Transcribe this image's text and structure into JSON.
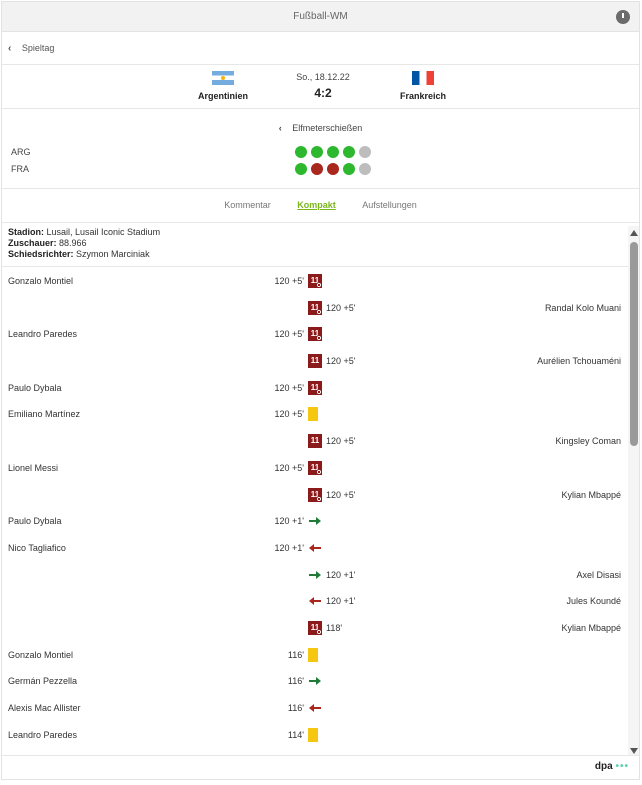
{
  "app_title": "Fußball-WM",
  "back_label": "Spieltag",
  "match": {
    "date": "So., 18.12.22",
    "score": "4:2",
    "home_team": "Argentinien",
    "away_team": "Frankreich"
  },
  "shootout": {
    "title": "Elfmeterschießen",
    "rows": [
      {
        "label": "ARG",
        "results": [
          "scored",
          "scored",
          "scored",
          "scored",
          "none"
        ]
      },
      {
        "label": "FRA",
        "results": [
          "scored",
          "missed",
          "missed",
          "scored",
          "none"
        ]
      }
    ]
  },
  "tabs": [
    {
      "label": "Kommentar",
      "active": false
    },
    {
      "label": "Kompakt",
      "active": true
    },
    {
      "label": "Aufstellungen",
      "active": false
    }
  ],
  "info": {
    "stadium_label": "Stadion:",
    "stadium": "Lusail, Lusail Iconic Stadium",
    "attendance_label": "Zuschauer:",
    "attendance": "88.966",
    "referee_label": "Schiedsrichter:",
    "referee": "Szymon Marciniak"
  },
  "events": [
    {
      "side": "left",
      "player": "Gonzalo Montiel",
      "time": "120 +5'",
      "icon": "penalty-scored"
    },
    {
      "side": "right",
      "player": "Randal Kolo Muani",
      "time": "120 +5'",
      "icon": "penalty-scored"
    },
    {
      "side": "left",
      "player": "Leandro Paredes",
      "time": "120 +5'",
      "icon": "penalty-scored"
    },
    {
      "side": "right",
      "player": "Aurélien Tchouaméni",
      "time": "120 +5'",
      "icon": "penalty-missed"
    },
    {
      "side": "left",
      "player": "Paulo Dybala",
      "time": "120 +5'",
      "icon": "penalty-scored"
    },
    {
      "side": "left",
      "player": "Emiliano Martínez",
      "time": "120 +5'",
      "icon": "yellow-card"
    },
    {
      "side": "right",
      "player": "Kingsley Coman",
      "time": "120 +5'",
      "icon": "penalty-missed"
    },
    {
      "side": "left",
      "player": "Lionel Messi",
      "time": "120 +5'",
      "icon": "penalty-scored"
    },
    {
      "side": "right",
      "player": "Kylian Mbappé",
      "time": "120 +5'",
      "icon": "penalty-scored"
    },
    {
      "side": "left",
      "player": "Paulo Dybala",
      "time": "120 +1'",
      "icon": "substitution-in"
    },
    {
      "side": "left",
      "player": "Nico Tagliafico",
      "time": "120 +1'",
      "icon": "substitution-out"
    },
    {
      "side": "right",
      "player": "Axel Disasi",
      "time": "120 +1'",
      "icon": "substitution-in"
    },
    {
      "side": "right",
      "player": "Jules Koundé",
      "time": "120 +1'",
      "icon": "substitution-out"
    },
    {
      "side": "right",
      "player": "Kylian Mbappé",
      "time": "118'",
      "icon": "penalty-scored"
    },
    {
      "side": "left",
      "player": "Gonzalo Montiel",
      "time": "116'",
      "icon": "yellow-card"
    },
    {
      "side": "left",
      "player": "Germán Pezzella",
      "time": "116'",
      "icon": "substitution-in"
    },
    {
      "side": "left",
      "player": "Alexis Mac Allister",
      "time": "116'",
      "icon": "substitution-out"
    },
    {
      "side": "left",
      "player": "Leandro Paredes",
      "time": "114'",
      "icon": "yellow-card"
    }
  ],
  "penalty_icon_text": "11",
  "footer_brand": "dpa",
  "footer_dots": "•••",
  "colors": {
    "accent": "#7ab51d",
    "scored": "#2db82d",
    "missed": "#a8281e",
    "none": "#bdbdbd",
    "penalty_icon": "#8b1a1a",
    "yellow_card": "#f5c710",
    "sub_in": "#1f7a3a",
    "sub_out": "#a8281e"
  }
}
